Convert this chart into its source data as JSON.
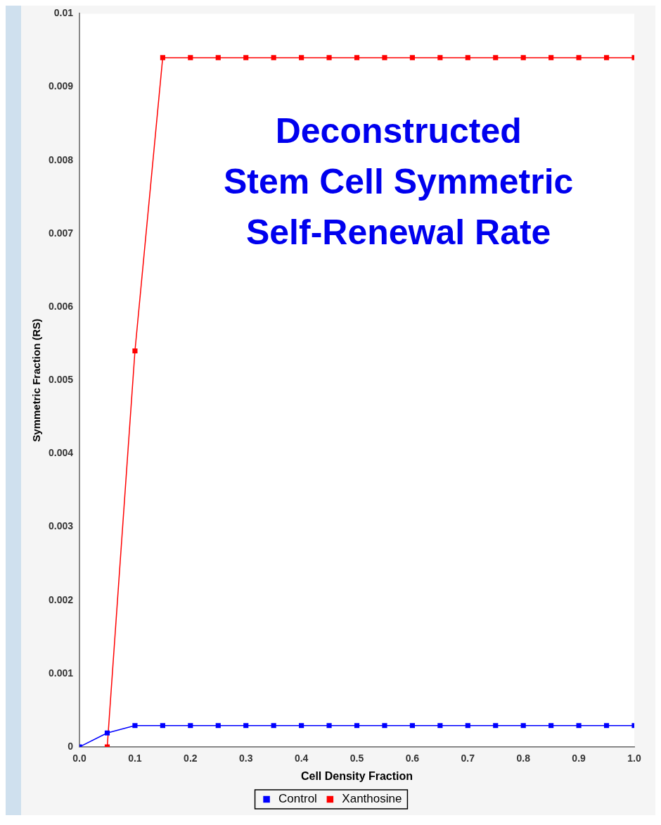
{
  "chart_data": {
    "type": "line",
    "title": "Deconstructed\nStem Cell Symmetric\nSelf-Renewal Rate",
    "xlabel": "Cell Density Fraction",
    "ylabel": "Symmetric Fraction (RS)",
    "xlim": [
      0,
      1
    ],
    "ylim": [
      0,
      0.01
    ],
    "xticks": [
      {
        "value": 0,
        "label": "0.0"
      },
      {
        "value": 0.1,
        "label": "0.1"
      },
      {
        "value": 0.2,
        "label": "0.2"
      },
      {
        "value": 0.3,
        "label": "0.3"
      },
      {
        "value": 0.4,
        "label": "0.4"
      },
      {
        "value": 0.5,
        "label": "0.5"
      },
      {
        "value": 0.6,
        "label": "0.6"
      },
      {
        "value": 0.7,
        "label": "0.7"
      },
      {
        "value": 0.8,
        "label": "0.8"
      },
      {
        "value": 0.9,
        "label": "0.9"
      },
      {
        "value": 1,
        "label": "1.0"
      }
    ],
    "yticks": [
      0,
      0.001,
      0.002,
      0.003,
      0.004,
      0.005,
      0.006,
      0.007,
      0.008,
      0.009,
      0.01
    ],
    "grid": false,
    "legend": "bottom",
    "marker": "square",
    "line_style": "solid",
    "series": [
      {
        "name": "Control",
        "color": "#0000ff",
        "x": [
          0,
          0.05,
          0.1,
          0.15,
          0.2,
          0.25,
          0.3,
          0.35,
          0.4,
          0.45,
          0.5,
          0.55,
          0.6,
          0.65,
          0.7,
          0.75,
          0.8,
          0.85,
          0.9,
          0.95,
          1
        ],
        "values": [
          0,
          0.00019,
          0.00029,
          0.00029,
          0.00029,
          0.00029,
          0.00029,
          0.00029,
          0.00029,
          0.00029,
          0.00029,
          0.00029,
          0.00029,
          0.00029,
          0.00029,
          0.00029,
          0.00029,
          0.00029,
          0.00029,
          0.00029,
          0.00029
        ]
      },
      {
        "name": "Xanthosine",
        "color": "#ff0000",
        "x": [
          0.05,
          0.1,
          0.15,
          0.2,
          0.25,
          0.3,
          0.35,
          0.4,
          0.45,
          0.5,
          0.55,
          0.6,
          0.65,
          0.7,
          0.75,
          0.8,
          0.85,
          0.9,
          0.95,
          1
        ],
        "values": [
          0,
          0.0054,
          0.0094,
          0.0094,
          0.0094,
          0.0094,
          0.0094,
          0.0094,
          0.0094,
          0.0094,
          0.0094,
          0.0094,
          0.0094,
          0.0094,
          0.0094,
          0.0094,
          0.0094,
          0.0094,
          0.0094,
          0.0094
        ]
      }
    ]
  }
}
